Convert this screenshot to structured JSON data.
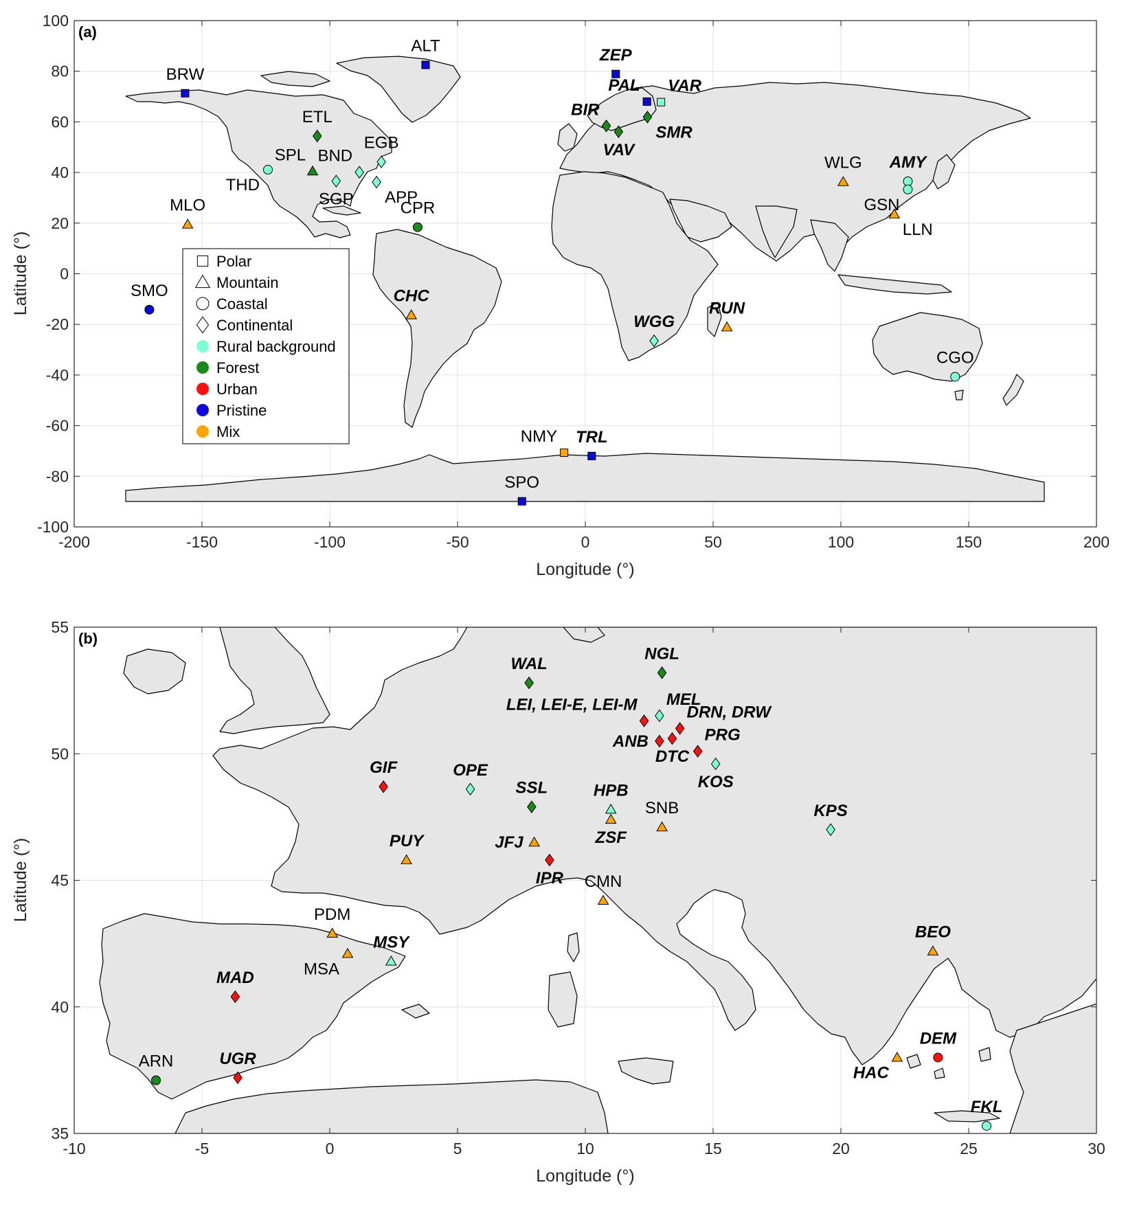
{
  "colors": {
    "rural": "#7fffd4",
    "forest": "#1a8a1a",
    "urban": "#ff1010",
    "pristine": "#0a0adc",
    "mix": "#ffa500",
    "land": "#e6e6e6",
    "grid": "#e0e0e0"
  },
  "legend": [
    {
      "label": "Polar",
      "kind": "shape",
      "shape": "square"
    },
    {
      "label": "Mountain",
      "kind": "shape",
      "shape": "triangle"
    },
    {
      "label": "Coastal",
      "kind": "shape",
      "shape": "circle"
    },
    {
      "label": "Continental",
      "kind": "shape",
      "shape": "diamond"
    },
    {
      "label": "Rural background",
      "kind": "color",
      "color": "rural"
    },
    {
      "label": "Forest",
      "kind": "color",
      "color": "forest"
    },
    {
      "label": "Urban",
      "kind": "color",
      "color": "urban"
    },
    {
      "label": "Pristine",
      "kind": "color",
      "color": "pristine"
    },
    {
      "label": "Mix",
      "kind": "color",
      "color": "mix"
    }
  ],
  "chart_data": [
    {
      "type": "scatter",
      "panel": "(a)",
      "xlabel": "Longitude (°)",
      "ylabel": "Latitude (°)",
      "xlim": [
        -200,
        200
      ],
      "ylim": [
        -100,
        100
      ],
      "xticks": [
        -200,
        -150,
        -100,
        -50,
        0,
        50,
        100,
        150,
        200
      ],
      "yticks": [
        -100,
        -80,
        -60,
        -40,
        -20,
        0,
        20,
        40,
        60,
        80,
        100
      ],
      "grid": true,
      "legend_position": "middle-left",
      "sites": [
        {
          "code": "BRW",
          "lon": -156.6,
          "lat": 71.3,
          "shape": "square",
          "color": "pristine",
          "bi": false,
          "label_pos": "above"
        },
        {
          "code": "ALT",
          "lon": -62.5,
          "lat": 82.5,
          "shape": "square",
          "color": "pristine",
          "bi": false,
          "label_pos": "above"
        },
        {
          "code": "ZEP",
          "lon": 11.9,
          "lat": 78.9,
          "shape": "square",
          "color": "pristine",
          "bi": true,
          "label_pos": "above"
        },
        {
          "code": "PAL",
          "lon": 24.1,
          "lat": 68.0,
          "shape": "square",
          "color": "pristine",
          "bi": true,
          "label_pos": "above-left"
        },
        {
          "code": "VAR",
          "lon": 29.6,
          "lat": 67.8,
          "shape": "square",
          "color": "rural",
          "bi": true,
          "label_pos": "above-right"
        },
        {
          "code": "BIR",
          "lon": 8.2,
          "lat": 58.4,
          "shape": "diamond",
          "color": "forest",
          "bi": true,
          "label_pos": "above-left"
        },
        {
          "code": "SMR",
          "lon": 24.3,
          "lat": 61.9,
          "shape": "diamond",
          "color": "forest",
          "bi": true,
          "label_pos": "below-right"
        },
        {
          "code": "VAV",
          "lon": 13.0,
          "lat": 56.1,
          "shape": "diamond",
          "color": "forest",
          "bi": true,
          "label_pos": "below"
        },
        {
          "code": "ETL",
          "lon": -104.9,
          "lat": 54.4,
          "shape": "diamond",
          "color": "forest",
          "bi": false,
          "label_pos": "above"
        },
        {
          "code": "SPL",
          "lon": -106.7,
          "lat": 40.5,
          "shape": "triangle",
          "color": "forest",
          "bi": false,
          "label_pos": "above-left"
        },
        {
          "code": "THD",
          "lon": -124.2,
          "lat": 41.1,
          "shape": "circle",
          "color": "rural",
          "bi": false,
          "label_pos": "below-left"
        },
        {
          "code": "BND",
          "lon": -88.4,
          "lat": 40.1,
          "shape": "diamond",
          "color": "rural",
          "bi": false,
          "label_pos": "above-left"
        },
        {
          "code": "EGB",
          "lon": -79.8,
          "lat": 44.2,
          "shape": "diamond",
          "color": "rural",
          "bi": false,
          "label_pos": "above"
        },
        {
          "code": "SGP",
          "lon": -97.5,
          "lat": 36.6,
          "shape": "diamond",
          "color": "rural",
          "bi": false,
          "label_pos": "below"
        },
        {
          "code": "APP",
          "lon": -81.7,
          "lat": 36.2,
          "shape": "diamond",
          "color": "rural",
          "bi": false,
          "label_pos": "below-right"
        },
        {
          "code": "CPR",
          "lon": -65.6,
          "lat": 18.4,
          "shape": "circle",
          "color": "forest",
          "bi": false,
          "label_pos": "above"
        },
        {
          "code": "MLO",
          "lon": -155.6,
          "lat": 19.5,
          "shape": "triangle",
          "color": "mix",
          "bi": false,
          "label_pos": "above"
        },
        {
          "code": "SMO",
          "lon": -170.6,
          "lat": -14.2,
          "shape": "circle",
          "color": "pristine",
          "bi": false,
          "label_pos": "above"
        },
        {
          "code": "CHC",
          "lon": -68.1,
          "lat": -16.3,
          "shape": "triangle",
          "color": "mix",
          "bi": true,
          "label_pos": "above"
        },
        {
          "code": "WGG",
          "lon": 26.9,
          "lat": -26.5,
          "shape": "diamond",
          "color": "rural",
          "bi": true,
          "label_pos": "above"
        },
        {
          "code": "RUN",
          "lon": 55.4,
          "lat": -21.1,
          "shape": "triangle",
          "color": "mix",
          "bi": true,
          "label_pos": "above"
        },
        {
          "code": "WLG",
          "lon": 100.9,
          "lat": 36.3,
          "shape": "triangle",
          "color": "mix",
          "bi": false,
          "label_pos": "above"
        },
        {
          "code": "AMY",
          "lon": 126.2,
          "lat": 36.5,
          "shape": "circle",
          "color": "rural",
          "bi": true,
          "label_pos": "above"
        },
        {
          "code": "GSN",
          "lon": 126.2,
          "lat": 33.3,
          "shape": "circle",
          "color": "rural",
          "bi": false,
          "label_pos": "below-left"
        },
        {
          "code": "LLN",
          "lon": 120.9,
          "lat": 23.5,
          "shape": "triangle",
          "color": "mix",
          "bi": false,
          "label_pos": "below-right"
        },
        {
          "code": "CGO",
          "lon": 144.7,
          "lat": -40.7,
          "shape": "circle",
          "color": "rural",
          "bi": false,
          "label_pos": "above"
        },
        {
          "code": "NMY",
          "lon": -8.3,
          "lat": -70.7,
          "shape": "square",
          "color": "mix",
          "bi": false,
          "label_pos": "above-left"
        },
        {
          "code": "TRL",
          "lon": 2.5,
          "lat": -72.0,
          "shape": "square",
          "color": "pristine",
          "bi": true,
          "label_pos": "above"
        },
        {
          "code": "SPO",
          "lon": -24.8,
          "lat": -89.9,
          "shape": "square",
          "color": "pristine",
          "bi": false,
          "label_pos": "above"
        }
      ]
    },
    {
      "type": "scatter",
      "panel": "(b)",
      "xlabel": "Longitude (°)",
      "ylabel": "Latitude (°)",
      "xlim": [
        -10,
        30
      ],
      "ylim": [
        35,
        55
      ],
      "xticks": [
        -10,
        -5,
        0,
        5,
        10,
        15,
        20,
        25,
        30
      ],
      "yticks": [
        35,
        40,
        45,
        50,
        55
      ],
      "grid": true,
      "sites": [
        {
          "code": "WAL",
          "lon": 7.8,
          "lat": 52.8,
          "shape": "diamond",
          "color": "forest",
          "bi": true,
          "label_pos": "above"
        },
        {
          "code": "NGL",
          "lon": 13.0,
          "lat": 53.2,
          "shape": "diamond",
          "color": "forest",
          "bi": true,
          "label_pos": "above"
        },
        {
          "code": "MEL",
          "lon": 12.9,
          "lat": 51.5,
          "shape": "diamond",
          "color": "rural",
          "bi": true,
          "label_pos": "above-right"
        },
        {
          "code": "LEI, LEI-E, LEI-M",
          "lon": 12.3,
          "lat": 51.3,
          "shape": "diamond",
          "color": "urban",
          "bi": true,
          "label_pos": "above-left"
        },
        {
          "code": "DRN, DRW",
          "lon": 13.7,
          "lat": 51.0,
          "shape": "diamond",
          "color": "urban",
          "bi": true,
          "label_pos": "above-right"
        },
        {
          "code": "ANB",
          "lon": 12.9,
          "lat": 50.5,
          "shape": "diamond",
          "color": "urban",
          "bi": true,
          "label_pos": "left"
        },
        {
          "code": "DTC",
          "lon": 13.4,
          "lat": 50.6,
          "shape": "diamond",
          "color": "urban",
          "bi": true,
          "label_pos": "below"
        },
        {
          "code": "PRG",
          "lon": 14.4,
          "lat": 50.1,
          "shape": "diamond",
          "color": "urban",
          "bi": true,
          "label_pos": "above-right"
        },
        {
          "code": "KOS",
          "lon": 15.1,
          "lat": 49.6,
          "shape": "diamond",
          "color": "rural",
          "bi": true,
          "label_pos": "below"
        },
        {
          "code": "GIF",
          "lon": 2.1,
          "lat": 48.7,
          "shape": "diamond",
          "color": "urban",
          "bi": true,
          "label_pos": "above"
        },
        {
          "code": "OPE",
          "lon": 5.5,
          "lat": 48.6,
          "shape": "diamond",
          "color": "rural",
          "bi": true,
          "label_pos": "above"
        },
        {
          "code": "SSL",
          "lon": 7.9,
          "lat": 47.9,
          "shape": "diamond",
          "color": "forest",
          "bi": true,
          "label_pos": "above"
        },
        {
          "code": "HPB",
          "lon": 11.0,
          "lat": 47.8,
          "shape": "triangle",
          "color": "rural",
          "bi": true,
          "label_pos": "above"
        },
        {
          "code": "ZSF",
          "lon": 11.0,
          "lat": 47.4,
          "shape": "triangle",
          "color": "mix",
          "bi": true,
          "label_pos": "below"
        },
        {
          "code": "SNB",
          "lon": 13.0,
          "lat": 47.1,
          "shape": "triangle",
          "color": "mix",
          "bi": false,
          "label_pos": "above"
        },
        {
          "code": "KPS",
          "lon": 19.6,
          "lat": 47.0,
          "shape": "diamond",
          "color": "rural",
          "bi": true,
          "label_pos": "above"
        },
        {
          "code": "JFJ",
          "lon": 8.0,
          "lat": 46.5,
          "shape": "triangle",
          "color": "mix",
          "bi": true,
          "label_pos": "left"
        },
        {
          "code": "PUY",
          "lon": 3.0,
          "lat": 45.8,
          "shape": "triangle",
          "color": "mix",
          "bi": true,
          "label_pos": "above"
        },
        {
          "code": "IPR",
          "lon": 8.6,
          "lat": 45.8,
          "shape": "diamond",
          "color": "urban",
          "bi": true,
          "label_pos": "below"
        },
        {
          "code": "CMN",
          "lon": 10.7,
          "lat": 44.2,
          "shape": "triangle",
          "color": "mix",
          "bi": false,
          "label_pos": "above"
        },
        {
          "code": "PDM",
          "lon": 0.1,
          "lat": 42.9,
          "shape": "triangle",
          "color": "mix",
          "bi": false,
          "label_pos": "above"
        },
        {
          "code": "MSA",
          "lon": 0.7,
          "lat": 42.1,
          "shape": "triangle",
          "color": "mix",
          "bi": false,
          "label_pos": "below-left"
        },
        {
          "code": "MSY",
          "lon": 2.4,
          "lat": 41.8,
          "shape": "triangle",
          "color": "rural",
          "bi": true,
          "label_pos": "above"
        },
        {
          "code": "BEO",
          "lon": 23.6,
          "lat": 42.2,
          "shape": "triangle",
          "color": "mix",
          "bi": true,
          "label_pos": "above"
        },
        {
          "code": "MAD",
          "lon": -3.7,
          "lat": 40.4,
          "shape": "diamond",
          "color": "urban",
          "bi": true,
          "label_pos": "above"
        },
        {
          "code": "UGR",
          "lon": -3.6,
          "lat": 37.2,
          "shape": "diamond",
          "color": "urban",
          "bi": true,
          "label_pos": "above"
        },
        {
          "code": "ARN",
          "lon": -6.8,
          "lat": 37.1,
          "shape": "circle",
          "color": "forest",
          "bi": false,
          "label_pos": "above"
        },
        {
          "code": "DEM",
          "lon": 23.8,
          "lat": 38.0,
          "shape": "circle",
          "color": "urban",
          "bi": true,
          "label_pos": "above"
        },
        {
          "code": "HAC",
          "lon": 22.2,
          "lat": 38.0,
          "shape": "triangle",
          "color": "mix",
          "bi": true,
          "label_pos": "below-left"
        },
        {
          "code": "FKL",
          "lon": 25.7,
          "lat": 35.3,
          "shape": "circle",
          "color": "rural",
          "bi": true,
          "label_pos": "above"
        }
      ]
    }
  ]
}
